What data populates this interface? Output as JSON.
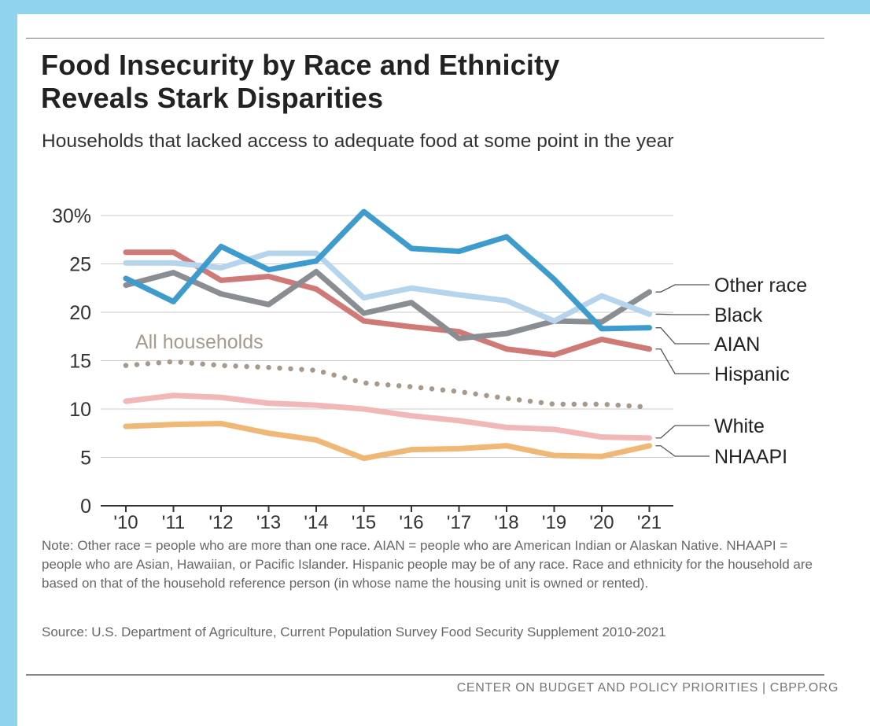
{
  "header": {
    "title_line1": "Food Insecurity by Race and Ethnicity",
    "title_line2": "Reveals Stark Disparities",
    "subtitle": "Households that lacked access to adequate food at some point in the year"
  },
  "note": "Note: Other race = people who are more than one race. AIAN = people who are American Indian or Alaskan Native. NHAAPI = people who are Asian, Hawaiian, or Pacific Islander. Hispanic people may be of any race. Race and ethnicity for the household are based on that of the household reference person (in whose name the housing unit is owned or rented).",
  "source": "Source: U.S. Department of Agriculture, Current Population Survey Food Security Supplement 2010-2021",
  "footer": "CENTER ON BUDGET AND POLICY PRIORITIES | CBPP.ORG",
  "chart_data": {
    "type": "line",
    "x": [
      "'10",
      "'11",
      "'12",
      "'13",
      "'14",
      "'15",
      "'16",
      "'17",
      "'18",
      "'19",
      "'20",
      "'21"
    ],
    "ylim": [
      0,
      30
    ],
    "yticks": [
      0,
      5,
      10,
      15,
      20,
      25,
      30
    ],
    "ytick_labels": [
      "0",
      "5",
      "10",
      "15",
      "20",
      "25",
      "30%"
    ],
    "grid": true,
    "series": [
      {
        "name": "All households",
        "color": "#a59a8d",
        "style": "dotted",
        "values": [
          14.5,
          14.9,
          14.5,
          14.3,
          14.0,
          12.7,
          12.3,
          11.8,
          11.1,
          10.5,
          10.5,
          10.2
        ]
      },
      {
        "name": "NHAAPI",
        "color": "#efb877",
        "style": "solid",
        "values": [
          8.2,
          8.4,
          8.5,
          7.5,
          6.8,
          4.9,
          5.8,
          5.9,
          6.2,
          5.2,
          5.1,
          6.2
        ]
      },
      {
        "name": "White",
        "color": "#f2b8b7",
        "style": "solid",
        "values": [
          10.8,
          11.4,
          11.2,
          10.6,
          10.4,
          10.0,
          9.3,
          8.8,
          8.1,
          7.9,
          7.1,
          7.0
        ]
      },
      {
        "name": "Hispanic",
        "color": "#d07a77",
        "style": "solid",
        "values": [
          26.2,
          26.2,
          23.3,
          23.7,
          22.4,
          19.1,
          18.5,
          18.0,
          16.2,
          15.6,
          17.2,
          16.2
        ]
      },
      {
        "name": "Other race",
        "color": "#8a8d91",
        "style": "solid",
        "values": [
          22.8,
          24.1,
          21.9,
          20.8,
          24.2,
          19.9,
          21.0,
          17.3,
          17.8,
          19.1,
          19.0,
          22.1
        ]
      },
      {
        "name": "Black",
        "color": "#b6d4ec",
        "style": "solid",
        "values": [
          25.1,
          25.1,
          24.6,
          26.1,
          26.1,
          21.5,
          22.5,
          21.8,
          21.2,
          19.1,
          21.7,
          19.8
        ]
      },
      {
        "name": "AIAN",
        "color": "#3d9ccd",
        "style": "solid",
        "values": [
          23.5,
          21.1,
          26.8,
          24.4,
          25.3,
          30.4,
          26.6,
          26.3,
          27.8,
          23.4,
          18.3,
          18.4
        ]
      }
    ],
    "annotations": [
      "All households"
    ],
    "legend_labels": [
      "Other race",
      "Black",
      "AIAN",
      "Hispanic",
      "White",
      "NHAAPI"
    ]
  }
}
